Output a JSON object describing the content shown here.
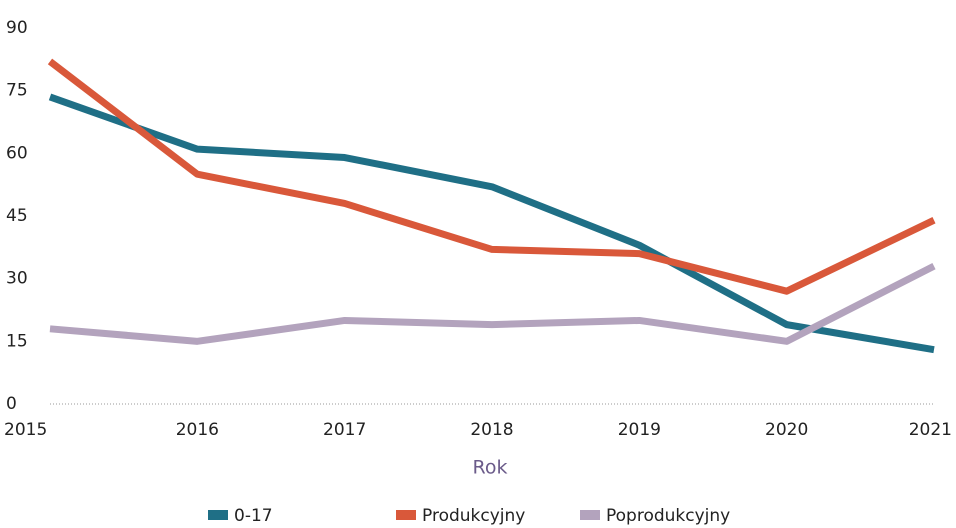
{
  "chart_data": {
    "type": "line",
    "x": [
      2015,
      2016,
      2017,
      2018,
      2019,
      2020,
      2021
    ],
    "xlim": [
      2015,
      2021
    ],
    "xticks": [
      2015,
      2016,
      2017,
      2018,
      2019,
      2020,
      2021
    ],
    "ylim": [
      0,
      90
    ],
    "yticks": [
      0,
      15,
      30,
      45,
      60,
      75,
      90
    ],
    "x_label": "Rok",
    "grid": false,
    "legend": "bottom",
    "series": [
      {
        "name": "0-17",
        "color": "#1f6f86",
        "values": [
          73.5,
          61,
          59,
          52,
          38,
          19,
          13
        ]
      },
      {
        "name": "Produkcyjny",
        "color": "#d9583a",
        "values": [
          82,
          55,
          48,
          37,
          36,
          27,
          44
        ]
      },
      {
        "name": "Poprodukcyjny",
        "color": "#b3a3bd",
        "values": [
          18,
          15,
          20,
          19,
          20,
          15,
          33
        ]
      }
    ]
  }
}
